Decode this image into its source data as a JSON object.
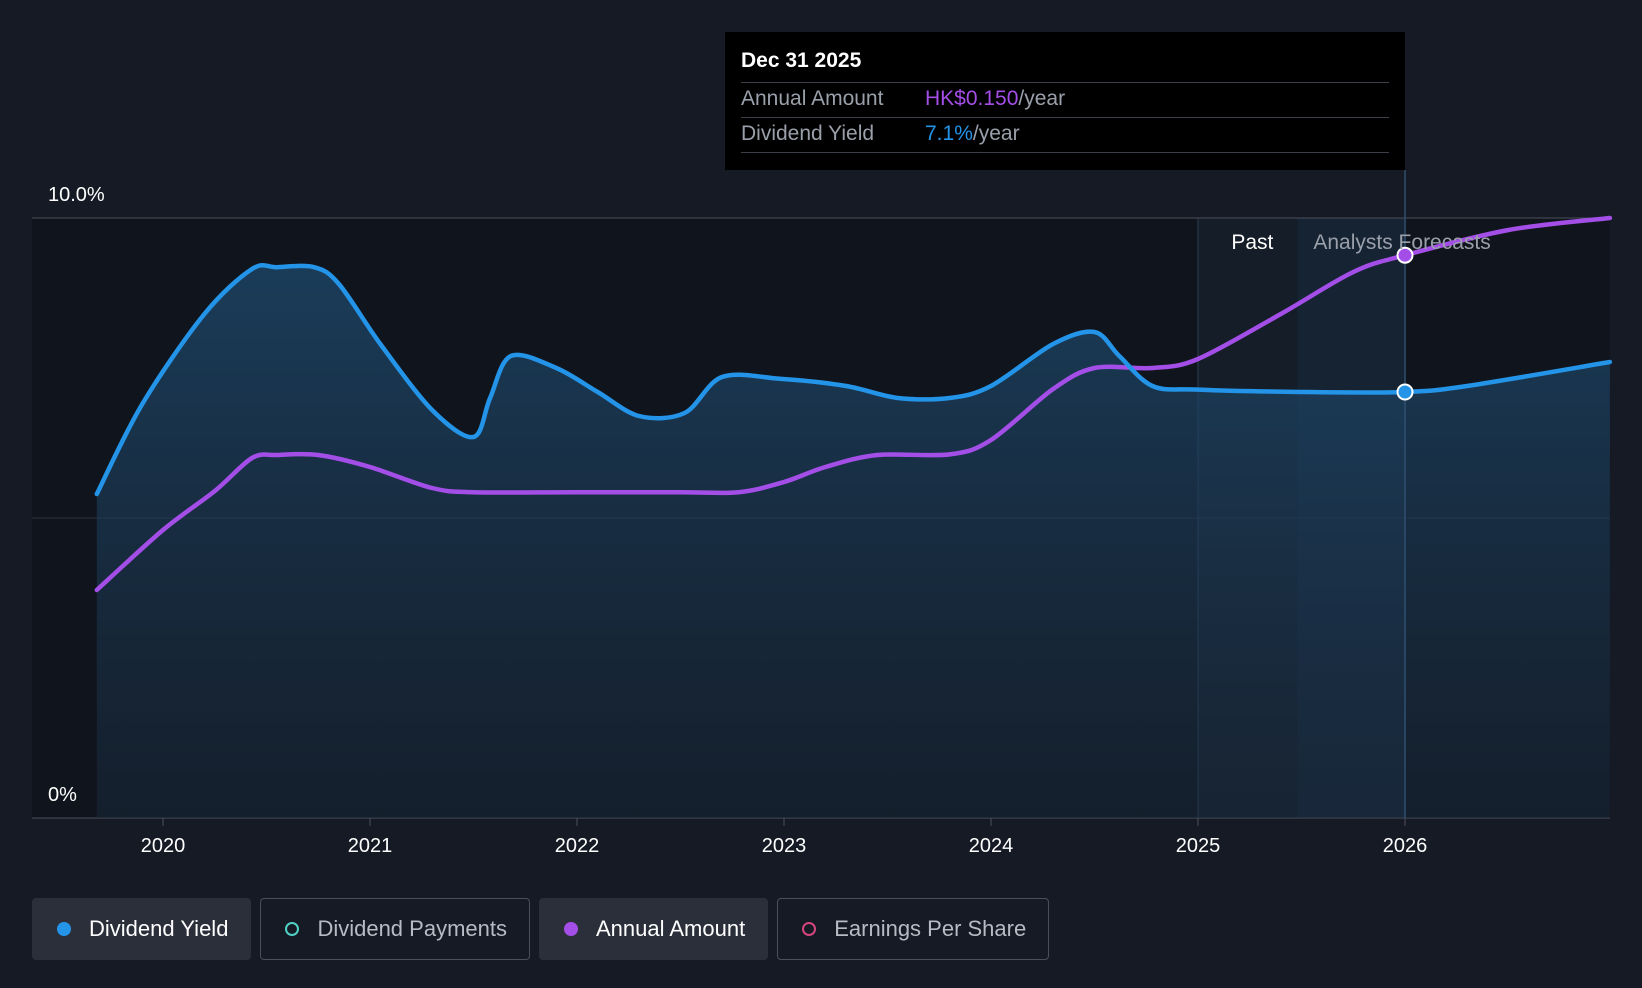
{
  "chart_data": {
    "type": "line",
    "y_axis": {
      "ticks": [
        "10.0%",
        "0%"
      ],
      "range": [
        0,
        10
      ]
    },
    "x_axis": {
      "ticks": [
        "2020",
        "2021",
        "2022",
        "2023",
        "2024",
        "2025",
        "2026"
      ],
      "range": [
        2019.68,
        2026.99
      ]
    },
    "regions": {
      "past": "Past",
      "forecast": "Analysts Forecasts"
    },
    "series": [
      {
        "name": "Dividend Yield",
        "color": "#2394e8",
        "points": [
          [
            2019.68,
            5.4
          ],
          [
            2019.9,
            6.9
          ],
          [
            2020.2,
            8.4
          ],
          [
            2020.43,
            9.15
          ],
          [
            2020.55,
            9.18
          ],
          [
            2020.73,
            9.18
          ],
          [
            2020.85,
            8.9
          ],
          [
            2021.05,
            7.9
          ],
          [
            2021.3,
            6.8
          ],
          [
            2021.5,
            6.35
          ],
          [
            2021.58,
            7.0
          ],
          [
            2021.68,
            7.7
          ],
          [
            2021.9,
            7.5
          ],
          [
            2022.1,
            7.1
          ],
          [
            2022.3,
            6.7
          ],
          [
            2022.52,
            6.75
          ],
          [
            2022.7,
            7.35
          ],
          [
            2022.98,
            7.32
          ],
          [
            2023.3,
            7.2
          ],
          [
            2023.55,
            7.0
          ],
          [
            2023.8,
            7.0
          ],
          [
            2024.0,
            7.2
          ],
          [
            2024.3,
            7.9
          ],
          [
            2024.5,
            8.1
          ],
          [
            2024.62,
            7.7
          ],
          [
            2024.78,
            7.2
          ],
          [
            2025.0,
            7.14
          ],
          [
            2025.5,
            7.1
          ],
          [
            2026.0,
            7.1
          ],
          [
            2026.3,
            7.2
          ],
          [
            2026.99,
            7.6
          ]
        ]
      },
      {
        "name": "Annual Amount",
        "color": "#a44ee8",
        "points": [
          [
            2019.68,
            3.8
          ],
          [
            2020.0,
            4.8
          ],
          [
            2020.25,
            5.45
          ],
          [
            2020.43,
            6.0
          ],
          [
            2020.55,
            6.05
          ],
          [
            2020.75,
            6.05
          ],
          [
            2021.0,
            5.85
          ],
          [
            2021.3,
            5.5
          ],
          [
            2021.5,
            5.43
          ],
          [
            2022.0,
            5.43
          ],
          [
            2022.5,
            5.43
          ],
          [
            2022.78,
            5.43
          ],
          [
            2023.0,
            5.6
          ],
          [
            2023.2,
            5.85
          ],
          [
            2023.45,
            6.05
          ],
          [
            2023.8,
            6.06
          ],
          [
            2024.0,
            6.3
          ],
          [
            2024.3,
            7.15
          ],
          [
            2024.5,
            7.5
          ],
          [
            2024.78,
            7.5
          ],
          [
            2025.0,
            7.65
          ],
          [
            2025.4,
            8.4
          ],
          [
            2025.75,
            9.1
          ],
          [
            2026.0,
            9.38
          ],
          [
            2026.5,
            9.8
          ],
          [
            2026.99,
            10.0
          ]
        ]
      }
    ],
    "highlight_x": 2026.0
  },
  "tooltip": {
    "date": "Dec 31 2025",
    "rows": [
      {
        "label": "Annual Amount",
        "value": "HK$0.150",
        "unit": "/year",
        "color": "#a44ee8"
      },
      {
        "label": "Dividend Yield",
        "value": "7.1%",
        "unit": "/year",
        "color": "#2394e8"
      }
    ]
  },
  "legend": [
    {
      "label": "Dividend Yield",
      "active": true,
      "color": "#2394e8",
      "filled": true
    },
    {
      "label": "Dividend Payments",
      "active": false,
      "color": "#4fd1c5",
      "filled": false
    },
    {
      "label": "Annual Amount",
      "active": true,
      "color": "#a44ee8",
      "filled": true
    },
    {
      "label": "Earnings Per Share",
      "active": false,
      "color": "#d6457e",
      "filled": false
    }
  ]
}
